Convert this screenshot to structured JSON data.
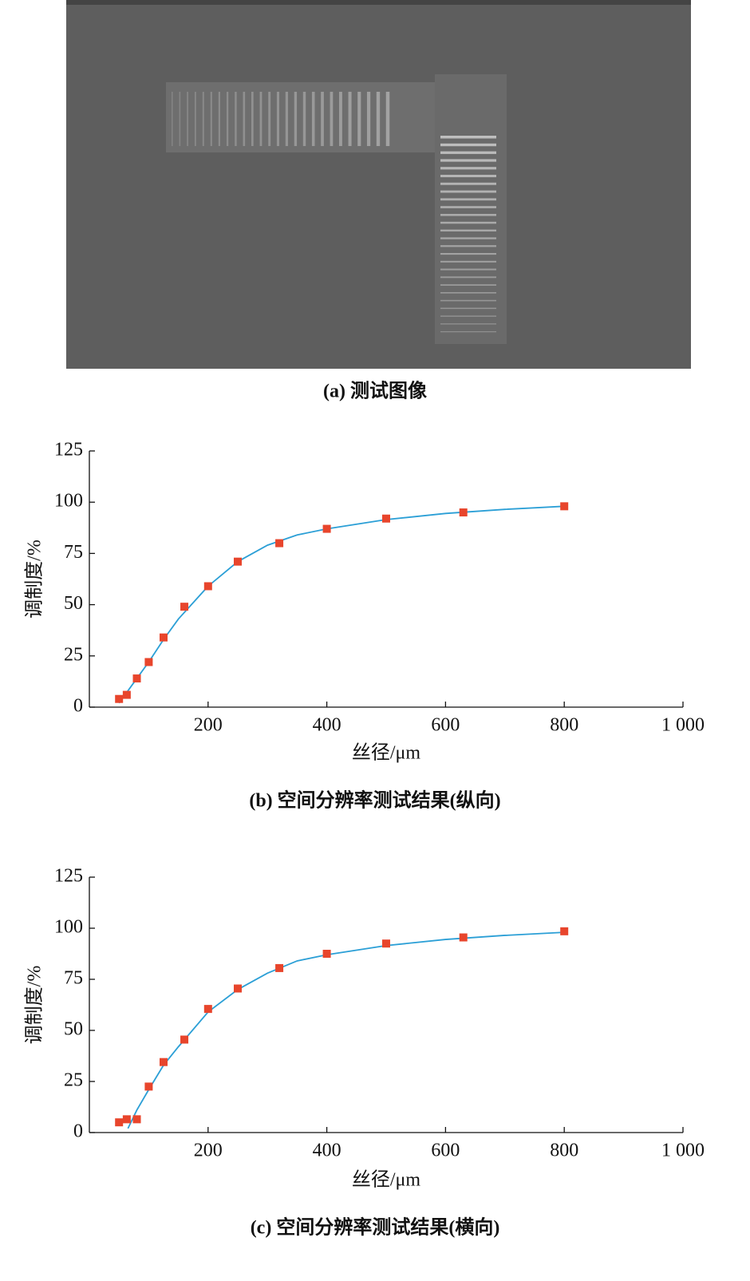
{
  "image": {
    "caption": "(a) 测试图像"
  },
  "chart_data": [
    {
      "type": "scatter",
      "caption": "(b) 空间分辨率测试结果(纵向)",
      "xlabel": "丝径/μm",
      "ylabel": "调制度/%",
      "xlim": [
        0,
        1000
      ],
      "xticks": [
        200,
        400,
        600,
        800,
        {
          "value": 1000,
          "label": "1 000"
        }
      ],
      "ylim": [
        0,
        125
      ],
      "yticks": [
        0,
        25,
        50,
        75,
        100,
        125
      ],
      "series": [
        {
          "marker": "square",
          "color": "#e8452c",
          "x": [
            50,
            63,
            80,
            100,
            125,
            160,
            200,
            250,
            320,
            400,
            500,
            630,
            800
          ],
          "values": [
            4,
            6,
            14,
            22,
            34,
            49,
            59,
            71,
            80,
            87,
            92,
            95,
            98
          ]
        },
        {
          "marker": "line",
          "color": "#2b9fd6",
          "x": [
            50,
            75,
            100,
            125,
            150,
            200,
            250,
            300,
            350,
            400,
            500,
            600,
            700,
            800
          ],
          "values": [
            2,
            12,
            22,
            33,
            43,
            59,
            71,
            79,
            84,
            87,
            91.5,
            94.5,
            96.5,
            98
          ]
        }
      ]
    },
    {
      "type": "scatter",
      "caption": "(c) 空间分辨率测试结果(横向)",
      "xlabel": "丝径/μm",
      "ylabel": "调制度/%",
      "xlim": [
        0,
        1000
      ],
      "xticks": [
        200,
        400,
        600,
        800,
        {
          "value": 1000,
          "label": "1 000"
        }
      ],
      "ylim": [
        0,
        125
      ],
      "yticks": [
        0,
        25,
        50,
        75,
        100,
        125
      ],
      "series": [
        {
          "marker": "square",
          "color": "#e8452c",
          "x": [
            50,
            63,
            80,
            100,
            125,
            160,
            200,
            250,
            320,
            400,
            500,
            630,
            800
          ],
          "values": [
            5,
            6.5,
            6.5,
            22.5,
            34.5,
            45.5,
            60.5,
            70.5,
            80.5,
            87.5,
            92.5,
            95.5,
            98.5
          ]
        },
        {
          "marker": "line",
          "color": "#2b9fd6",
          "x": [
            65,
            80,
            100,
            125,
            150,
            200,
            250,
            300,
            350,
            400,
            500,
            600,
            700,
            800
          ],
          "values": [
            2,
            11,
            21,
            33,
            42,
            59,
            70,
            78,
            84,
            87,
            91.5,
            94.5,
            96.5,
            98
          ]
        }
      ]
    }
  ]
}
